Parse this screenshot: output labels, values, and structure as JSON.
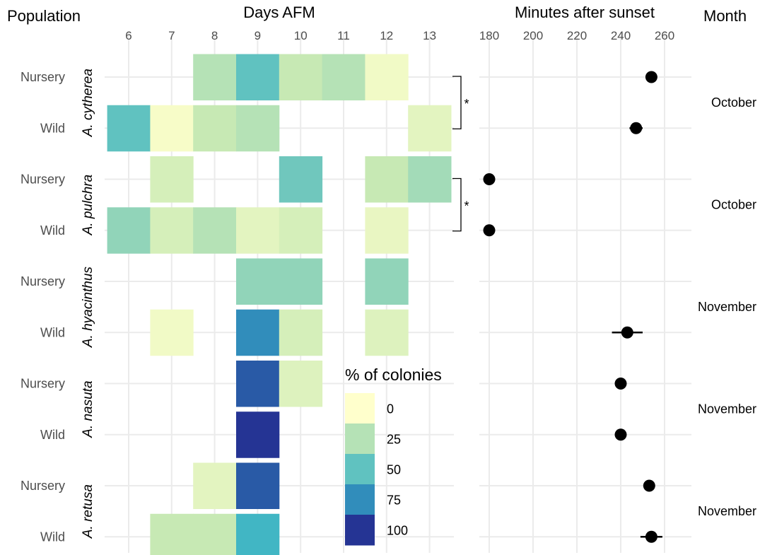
{
  "headers": {
    "population": "Population",
    "days": "Days AFM",
    "minutes": "Minutes after sunset",
    "month": "Month"
  },
  "chart_data": [
    {
      "type": "heatmap",
      "xlabel": "Days AFM",
      "x_ticks": [
        6,
        7,
        8,
        9,
        10,
        11,
        12,
        13
      ],
      "ylabel": "Population",
      "color_scale": {
        "title": "% of colonies",
        "ticks": [
          0,
          25,
          50,
          75,
          100
        ],
        "range": [
          0,
          100
        ],
        "colors": [
          "#ffffcc",
          "#c7e9b4",
          "#7fcdbb",
          "#41b6c4",
          "#2c7fb8",
          "#253494"
        ]
      },
      "species": [
        {
          "name": "A. cytherea",
          "month": "October",
          "significance": "*",
          "rows": [
            {
              "population": "Nursery",
              "cells": [
                {
                  "day": 8,
                  "value": 25
                },
                {
                  "day": 9,
                  "value": 50
                },
                {
                  "day": 10,
                  "value": 20
                },
                {
                  "day": 11,
                  "value": 25
                },
                {
                  "day": 12,
                  "value": 5
                }
              ]
            },
            {
              "population": "Wild",
              "cells": [
                {
                  "day": 6,
                  "value": 50
                },
                {
                  "day": 7,
                  "value": 3
                },
                {
                  "day": 8,
                  "value": 20
                },
                {
                  "day": 9,
                  "value": 25
                },
                {
                  "day": 13,
                  "value": 10
                }
              ]
            }
          ]
        },
        {
          "name": "A. pulchra",
          "month": "October",
          "significance": "*",
          "rows": [
            {
              "population": "Nursery",
              "cells": [
                {
                  "day": 7,
                  "value": 15
                },
                {
                  "day": 10,
                  "value": 45
                },
                {
                  "day": 12,
                  "value": 20
                },
                {
                  "day": 13,
                  "value": 30
                }
              ]
            },
            {
              "population": "Wild",
              "cells": [
                {
                  "day": 6,
                  "value": 35
                },
                {
                  "day": 7,
                  "value": 15
                },
                {
                  "day": 8,
                  "value": 25
                },
                {
                  "day": 9,
                  "value": 10
                },
                {
                  "day": 10,
                  "value": 15
                },
                {
                  "day": 12,
                  "value": 8
                }
              ]
            }
          ]
        },
        {
          "name": "A. hyacinthus",
          "month": "November",
          "rows": [
            {
              "population": "Nursery",
              "cells": [
                {
                  "day": 9,
                  "value": 35
                },
                {
                  "day": 10,
                  "value": 35
                },
                {
                  "day": 12,
                  "value": 35
                }
              ]
            },
            {
              "population": "Wild",
              "cells": [
                {
                  "day": 7,
                  "value": 5
                },
                {
                  "day": 9,
                  "value": 75
                },
                {
                  "day": 10,
                  "value": 15
                },
                {
                  "day": 12,
                  "value": 12
                }
              ]
            }
          ]
        },
        {
          "name": "A. nasuta",
          "month": "November",
          "rows": [
            {
              "population": "Nursery",
              "cells": [
                {
                  "day": 9,
                  "value": 90
                },
                {
                  "day": 10,
                  "value": 12
                }
              ]
            },
            {
              "population": "Wild",
              "cells": [
                {
                  "day": 9,
                  "value": 100
                }
              ]
            }
          ]
        },
        {
          "name": "A. retusa",
          "month": "November",
          "rows": [
            {
              "population": "Nursery",
              "cells": [
                {
                  "day": 8,
                  "value": 10
                },
                {
                  "day": 9,
                  "value": 90
                }
              ]
            },
            {
              "population": "Wild",
              "cells": [
                {
                  "day": 7,
                  "value": 20
                },
                {
                  "day": 8,
                  "value": 20
                },
                {
                  "day": 9,
                  "value": 60
                }
              ]
            }
          ]
        }
      ]
    },
    {
      "type": "scatter",
      "xlabel": "Minutes after sunset",
      "x_ticks": [
        180,
        200,
        220,
        240,
        260
      ],
      "points": [
        {
          "species": "A. cytherea",
          "population": "Nursery",
          "x": 254,
          "err": 0
        },
        {
          "species": "A. cytherea",
          "population": "Wild",
          "x": 247,
          "err": 3
        },
        {
          "species": "A. pulchra",
          "population": "Nursery",
          "x": 180,
          "err": 0
        },
        {
          "species": "A. pulchra",
          "population": "Wild",
          "x": 180,
          "err": 0
        },
        {
          "species": "A. hyacinthus",
          "population": "Nursery",
          "x": null,
          "err": 0
        },
        {
          "species": "A. hyacinthus",
          "population": "Wild",
          "x": 243,
          "err": 7
        },
        {
          "species": "A. nasuta",
          "population": "Nursery",
          "x": 240,
          "err": 0
        },
        {
          "species": "A. nasuta",
          "population": "Wild",
          "x": 240,
          "err": 0
        },
        {
          "species": "A. retusa",
          "population": "Nursery",
          "x": 253,
          "err": 0
        },
        {
          "species": "A. retusa",
          "population": "Wild",
          "x": 254,
          "err": 5
        }
      ]
    }
  ]
}
